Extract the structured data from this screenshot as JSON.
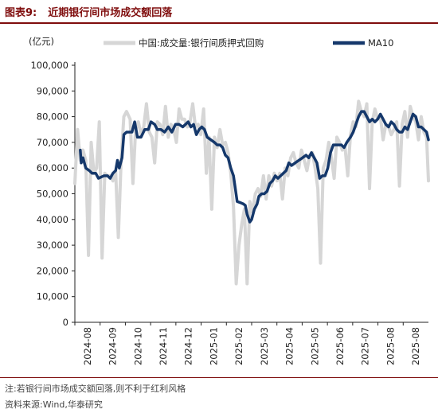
{
  "header": {
    "label": "图表9:",
    "title": "近期银行间市场成交额回落"
  },
  "footer": {
    "note": "注:若银行间市场成交额回落,则不利于红利风格",
    "source": "资料来源:Wind,华泰研究"
  },
  "colors": {
    "series_raw": "#d6d6d6",
    "series_ma": "#15386b",
    "accent": "#7f0d0d"
  },
  "chart_data": {
    "type": "line",
    "ylabel": "(亿元)",
    "ylim": [
      0,
      100000
    ],
    "yticks": [
      "0",
      "10,000",
      "20,000",
      "30,000",
      "40,000",
      "50,000",
      "60,000",
      "70,000",
      "80,000",
      "90,000",
      "100,000"
    ],
    "xlim": [
      "2024-08-01",
      "2025-08-26"
    ],
    "xticks": [
      "2024-08",
      "2024-09",
      "2024-10",
      "2024-11",
      "2024-12",
      "2025-01",
      "2025-02",
      "2025-03",
      "2025-04",
      "2025-05",
      "2025-06",
      "2025-07",
      "2025-08",
      "2025-08"
    ],
    "grid": false,
    "legend_position": "top",
    "series": [
      {
        "name": "中国:成交量:银行间质押式回购",
        "style": "thick-light",
        "points": [
          [
            "2024-08-01",
            54000
          ],
          [
            "2024-08-04",
            75000
          ],
          [
            "2024-08-07",
            63000
          ],
          [
            "2024-08-10",
            67000
          ],
          [
            "2024-08-13",
            63000
          ],
          [
            "2024-08-16",
            26000
          ],
          [
            "2024-08-19",
            70000
          ],
          [
            "2024-08-22",
            58000
          ],
          [
            "2024-08-25",
            60000
          ],
          [
            "2024-08-28",
            78000
          ],
          [
            "2024-08-31",
            25000
          ],
          [
            "2024-09-03",
            58000
          ],
          [
            "2024-09-06",
            57000
          ],
          [
            "2024-09-09",
            57000
          ],
          [
            "2024-09-12",
            55000
          ],
          [
            "2024-09-15",
            59000
          ],
          [
            "2024-09-18",
            33000
          ],
          [
            "2024-09-21",
            63000
          ],
          [
            "2024-09-24",
            80000
          ],
          [
            "2024-09-27",
            82000
          ],
          [
            "2024-10-01",
            79000
          ],
          [
            "2024-10-04",
            54000
          ],
          [
            "2024-10-07",
            75000
          ],
          [
            "2024-10-10",
            78000
          ],
          [
            "2024-10-13",
            73000
          ],
          [
            "2024-10-16",
            76000
          ],
          [
            "2024-10-19",
            85000
          ],
          [
            "2024-10-22",
            74000
          ],
          [
            "2024-10-25",
            72000
          ],
          [
            "2024-10-28",
            62000
          ],
          [
            "2024-10-31",
            78000
          ],
          [
            "2024-11-03",
            77000
          ],
          [
            "2024-11-06",
            73000
          ],
          [
            "2024-11-09",
            84000
          ],
          [
            "2024-11-12",
            72000
          ],
          [
            "2024-11-15",
            77000
          ],
          [
            "2024-11-18",
            75000
          ],
          [
            "2024-11-21",
            70000
          ],
          [
            "2024-11-24",
            83000
          ],
          [
            "2024-11-27",
            79000
          ],
          [
            "2024-11-30",
            79000
          ],
          [
            "2024-12-03",
            76000
          ],
          [
            "2024-12-06",
            78000
          ],
          [
            "2024-12-09",
            85000
          ],
          [
            "2024-12-12",
            76000
          ],
          [
            "2024-12-15",
            77000
          ],
          [
            "2024-12-18",
            73000
          ],
          [
            "2024-12-21",
            83000
          ],
          [
            "2024-12-24",
            58000
          ],
          [
            "2024-12-27",
            72000
          ],
          [
            "2024-12-30",
            44000
          ],
          [
            "2025-01-02",
            72000
          ],
          [
            "2025-01-05",
            68000
          ],
          [
            "2025-01-08",
            75000
          ],
          [
            "2025-01-11",
            69000
          ],
          [
            "2025-01-14",
            70000
          ],
          [
            "2025-01-17",
            66000
          ],
          [
            "2025-01-20",
            58000
          ],
          [
            "2025-01-23",
            45000
          ],
          [
            "2025-01-26",
            15000
          ],
          [
            "2025-01-29",
            30000
          ],
          [
            "2025-02-01",
            38000
          ],
          [
            "2025-02-04",
            44000
          ],
          [
            "2025-02-07",
            15000
          ],
          [
            "2025-02-10",
            47000
          ],
          [
            "2025-02-13",
            43000
          ],
          [
            "2025-02-16",
            50000
          ],
          [
            "2025-02-19",
            52000
          ],
          [
            "2025-02-22",
            49000
          ],
          [
            "2025-02-25",
            57000
          ],
          [
            "2025-02-28",
            48000
          ],
          [
            "2025-03-03",
            57000
          ],
          [
            "2025-03-06",
            53000
          ],
          [
            "2025-03-09",
            58000
          ],
          [
            "2025-03-12",
            55000
          ],
          [
            "2025-03-15",
            58000
          ],
          [
            "2025-03-18",
            48000
          ],
          [
            "2025-03-21",
            60000
          ],
          [
            "2025-03-24",
            57000
          ],
          [
            "2025-03-27",
            64000
          ],
          [
            "2025-03-30",
            66000
          ],
          [
            "2025-04-02",
            62000
          ],
          [
            "2025-04-05",
            60000
          ],
          [
            "2025-04-08",
            67000
          ],
          [
            "2025-04-11",
            63000
          ],
          [
            "2025-04-14",
            59000
          ],
          [
            "2025-04-17",
            65000
          ],
          [
            "2025-04-20",
            66000
          ],
          [
            "2025-04-23",
            60000
          ],
          [
            "2025-04-26",
            52000
          ],
          [
            "2025-04-29",
            23000
          ],
          [
            "2025-05-02",
            60000
          ],
          [
            "2025-05-05",
            63000
          ],
          [
            "2025-05-08",
            70000
          ],
          [
            "2025-05-11",
            64000
          ],
          [
            "2025-05-14",
            56000
          ],
          [
            "2025-05-17",
            72000
          ],
          [
            "2025-05-20",
            70000
          ],
          [
            "2025-05-23",
            67000
          ],
          [
            "2025-05-26",
            68000
          ],
          [
            "2025-05-29",
            57000
          ],
          [
            "2025-06-01",
            73000
          ],
          [
            "2025-06-04",
            78000
          ],
          [
            "2025-06-07",
            76000
          ],
          [
            "2025-06-10",
            86000
          ],
          [
            "2025-06-13",
            82000
          ],
          [
            "2025-06-16",
            80000
          ],
          [
            "2025-06-19",
            85000
          ],
          [
            "2025-06-22",
            52000
          ],
          [
            "2025-06-25",
            78000
          ],
          [
            "2025-06-28",
            83000
          ],
          [
            "2025-07-01",
            79000
          ],
          [
            "2025-07-04",
            80000
          ],
          [
            "2025-07-07",
            71000
          ],
          [
            "2025-07-10",
            77000
          ],
          [
            "2025-07-13",
            76000
          ],
          [
            "2025-07-16",
            73000
          ],
          [
            "2025-07-19",
            75000
          ],
          [
            "2025-07-22",
            78000
          ],
          [
            "2025-07-25",
            53000
          ],
          [
            "2025-07-28",
            77000
          ],
          [
            "2025-07-31",
            82000
          ],
          [
            "2025-08-03",
            72000
          ],
          [
            "2025-08-06",
            84000
          ],
          [
            "2025-08-09",
            80000
          ],
          [
            "2025-08-12",
            78000
          ],
          [
            "2025-08-15",
            71000
          ],
          [
            "2025-08-18",
            80000
          ],
          [
            "2025-08-21",
            74000
          ],
          [
            "2025-08-24",
            72000
          ],
          [
            "2025-08-26",
            55000
          ]
        ]
      },
      {
        "name": "MA10",
        "style": "thick-dark",
        "points": [
          [
            "2024-08-07",
            67000
          ],
          [
            "2024-08-08",
            62000
          ],
          [
            "2024-08-10",
            64000
          ],
          [
            "2024-08-13",
            60000
          ],
          [
            "2024-08-17",
            59000
          ],
          [
            "2024-08-20",
            58000
          ],
          [
            "2024-08-24",
            58000
          ],
          [
            "2024-08-27",
            56000
          ],
          [
            "2024-09-02",
            57000
          ],
          [
            "2024-09-06",
            57000
          ],
          [
            "2024-09-09",
            56000
          ],
          [
            "2024-09-12",
            58000
          ],
          [
            "2024-09-15",
            59000
          ],
          [
            "2024-09-17",
            63000
          ],
          [
            "2024-09-19",
            60000
          ],
          [
            "2024-09-22",
            64000
          ],
          [
            "2024-09-24",
            73000
          ],
          [
            "2024-09-27",
            74000
          ],
          [
            "2024-10-01",
            74000
          ],
          [
            "2024-10-03",
            74000
          ],
          [
            "2024-10-06",
            78000
          ],
          [
            "2024-10-09",
            72000
          ],
          [
            "2024-10-13",
            72000
          ],
          [
            "2024-10-17",
            75000
          ],
          [
            "2024-10-21",
            75000
          ],
          [
            "2024-10-24",
            78000
          ],
          [
            "2024-10-28",
            77000
          ],
          [
            "2024-10-31",
            75000
          ],
          [
            "2024-11-04",
            75000
          ],
          [
            "2024-11-08",
            74000
          ],
          [
            "2024-11-12",
            76000
          ],
          [
            "2024-11-16",
            74000
          ],
          [
            "2024-11-20",
            77000
          ],
          [
            "2024-11-24",
            77000
          ],
          [
            "2024-11-28",
            76000
          ],
          [
            "2024-12-01",
            77000
          ],
          [
            "2024-12-04",
            78000
          ],
          [
            "2024-12-07",
            76000
          ],
          [
            "2024-12-10",
            77000
          ],
          [
            "2024-12-13",
            73000
          ],
          [
            "2024-12-16",
            75000
          ],
          [
            "2024-12-19",
            76000
          ],
          [
            "2024-12-22",
            75000
          ],
          [
            "2024-12-25",
            72000
          ],
          [
            "2024-12-29",
            71000
          ],
          [
            "2025-01-02",
            70000
          ],
          [
            "2025-01-05",
            69000
          ],
          [
            "2025-01-08",
            69000
          ],
          [
            "2025-01-11",
            68000
          ],
          [
            "2025-01-14",
            65000
          ],
          [
            "2025-01-17",
            64000
          ],
          [
            "2025-01-20",
            60000
          ],
          [
            "2025-01-23",
            57000
          ],
          [
            "2025-01-25",
            52000
          ],
          [
            "2025-01-27",
            47000
          ],
          [
            "2025-01-31",
            46500
          ],
          [
            "2025-02-03",
            46000
          ],
          [
            "2025-02-05",
            45500
          ],
          [
            "2025-02-07",
            42000
          ],
          [
            "2025-02-10",
            39000
          ],
          [
            "2025-02-12",
            40000
          ],
          [
            "2025-02-15",
            44000
          ],
          [
            "2025-02-18",
            46000
          ],
          [
            "2025-02-20",
            49000
          ],
          [
            "2025-02-23",
            50000
          ],
          [
            "2025-02-26",
            50000
          ],
          [
            "2025-03-01",
            51000
          ],
          [
            "2025-03-04",
            54000
          ],
          [
            "2025-03-07",
            55000
          ],
          [
            "2025-03-10",
            57000
          ],
          [
            "2025-03-13",
            56000
          ],
          [
            "2025-03-16",
            57000
          ],
          [
            "2025-03-19",
            58000
          ],
          [
            "2025-03-22",
            59000
          ],
          [
            "2025-03-25",
            62000
          ],
          [
            "2025-03-28",
            61000
          ],
          [
            "2025-04-01",
            62000
          ],
          [
            "2025-04-05",
            63000
          ],
          [
            "2025-04-09",
            64000
          ],
          [
            "2025-04-13",
            65000
          ],
          [
            "2025-04-16",
            64000
          ],
          [
            "2025-04-19",
            66000
          ],
          [
            "2025-04-22",
            64000
          ],
          [
            "2025-04-25",
            62000
          ],
          [
            "2025-04-28",
            56000
          ],
          [
            "2025-05-01",
            57000
          ],
          [
            "2025-05-04",
            57000
          ],
          [
            "2025-05-07",
            60000
          ],
          [
            "2025-05-10",
            66000
          ],
          [
            "2025-05-13",
            69000
          ],
          [
            "2025-05-16",
            69000
          ],
          [
            "2025-05-19",
            69000
          ],
          [
            "2025-05-22",
            69000
          ],
          [
            "2025-05-25",
            68000
          ],
          [
            "2025-05-28",
            70000
          ],
          [
            "2025-06-01",
            72000
          ],
          [
            "2025-06-04",
            74000
          ],
          [
            "2025-06-07",
            77000
          ],
          [
            "2025-06-10",
            80000
          ],
          [
            "2025-06-13",
            82000
          ],
          [
            "2025-06-16",
            82000
          ],
          [
            "2025-06-19",
            80000
          ],
          [
            "2025-06-22",
            78000
          ],
          [
            "2025-06-25",
            79000
          ],
          [
            "2025-06-28",
            78000
          ],
          [
            "2025-07-01",
            79000
          ],
          [
            "2025-07-04",
            81000
          ],
          [
            "2025-07-07",
            79000
          ],
          [
            "2025-07-10",
            77000
          ],
          [
            "2025-07-13",
            76000
          ],
          [
            "2025-07-16",
            78000
          ],
          [
            "2025-07-19",
            77000
          ],
          [
            "2025-07-22",
            75000
          ],
          [
            "2025-07-25",
            74000
          ],
          [
            "2025-07-28",
            74000
          ],
          [
            "2025-07-31",
            76000
          ],
          [
            "2025-08-03",
            75000
          ],
          [
            "2025-08-06",
            78000
          ],
          [
            "2025-08-09",
            81000
          ],
          [
            "2025-08-12",
            80000
          ],
          [
            "2025-08-15",
            76000
          ],
          [
            "2025-08-18",
            76000
          ],
          [
            "2025-08-21",
            75000
          ],
          [
            "2025-08-24",
            74000
          ],
          [
            "2025-08-26",
            71000
          ]
        ]
      }
    ]
  }
}
